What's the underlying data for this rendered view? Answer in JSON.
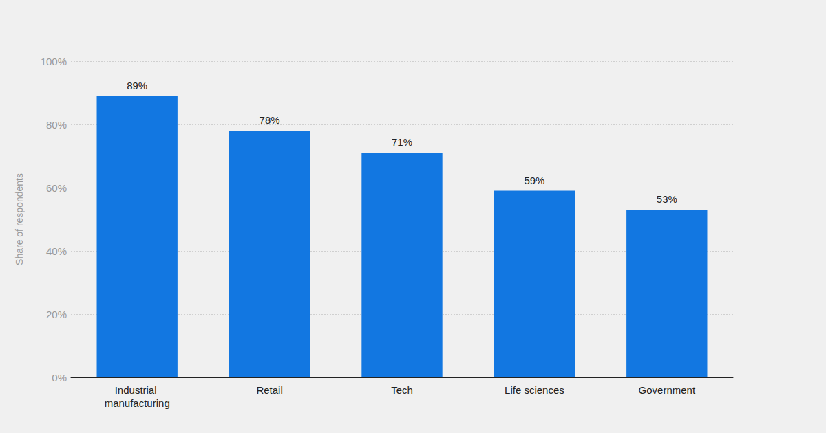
{
  "chart_data": {
    "type": "bar",
    "categories": [
      "Industrial manufacturing",
      "Retail",
      "Tech",
      "Life sciences",
      "Government"
    ],
    "values": [
      89,
      78,
      71,
      59,
      53
    ],
    "value_labels": [
      "89%",
      "78%",
      "71%",
      "59%",
      "53%"
    ],
    "color": "#1277e1",
    "ylabel": "Share of respondents",
    "ylim": [
      0,
      100
    ],
    "yticks": [
      {
        "value": 0,
        "label": "0%"
      },
      {
        "value": 20,
        "label": "20%"
      },
      {
        "value": 40,
        "label": "40%"
      },
      {
        "value": 60,
        "label": "60%"
      },
      {
        "value": 80,
        "label": "80%"
      },
      {
        "value": 100,
        "label": "100%"
      }
    ],
    "grid": true,
    "data_labels": true
  }
}
